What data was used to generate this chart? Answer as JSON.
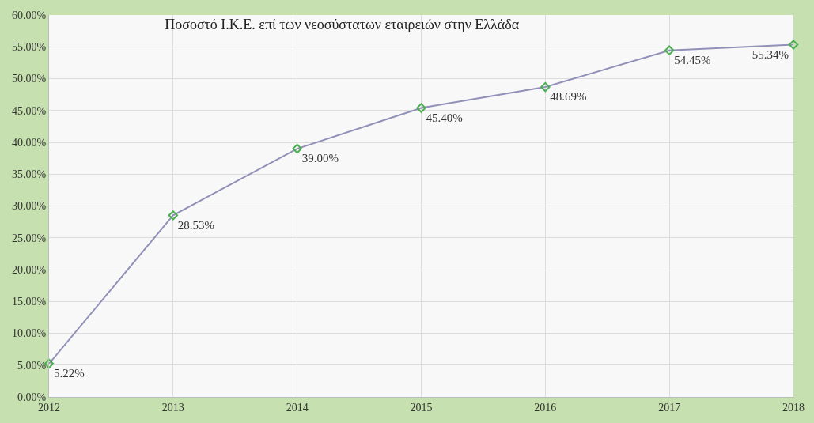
{
  "chart_data": {
    "type": "line",
    "title": "Ποσοστό Ι.Κ.Ε. επί των νεοσύστατων εταιρειών στην Ελλάδα",
    "x": [
      2012,
      2013,
      2014,
      2015,
      2016,
      2017,
      2018
    ],
    "series": [
      {
        "color": "#9090b8",
        "colors": [
          "#4caf50",
          "#4caf50",
          "#4caf50",
          "#4caf50",
          "#4caf50",
          "#4caf50",
          "#4caf50"
        ],
        "values": [
          5.22,
          28.53,
          39.0,
          45.4,
          48.69,
          54.45,
          55.34
        ],
        "value_labels": [
          "5.22%",
          "28.53%",
          "39.00%",
          "45.40%",
          "48.69%",
          "54.45%",
          "55.34%"
        ]
      }
    ],
    "xlim": [
      2012,
      2018
    ],
    "xticks": [
      2012,
      2013,
      2014,
      2015,
      2016,
      2017,
      2018
    ],
    "ylim": [
      0,
      60
    ],
    "yticks": [
      {
        "value": 0,
        "label": "0.00%"
      },
      {
        "value": 5,
        "label": "5.00%"
      },
      {
        "value": 10,
        "label": "10.00%"
      },
      {
        "value": 15,
        "label": "15.00%"
      },
      {
        "value": 20,
        "label": "20.00%"
      },
      {
        "value": 25,
        "label": "25.00%"
      },
      {
        "value": 30,
        "label": "30.00%"
      },
      {
        "value": 35,
        "label": "35.00%"
      },
      {
        "value": 40,
        "label": "40.00%"
      },
      {
        "value": 45,
        "label": "45.00%"
      },
      {
        "value": 50,
        "label": "50.00%"
      },
      {
        "value": 55,
        "label": "55.00%"
      },
      {
        "value": 60,
        "label": "60.00%"
      }
    ],
    "grid": true,
    "marker": "diamond",
    "line_style": "solid",
    "legend": false
  }
}
